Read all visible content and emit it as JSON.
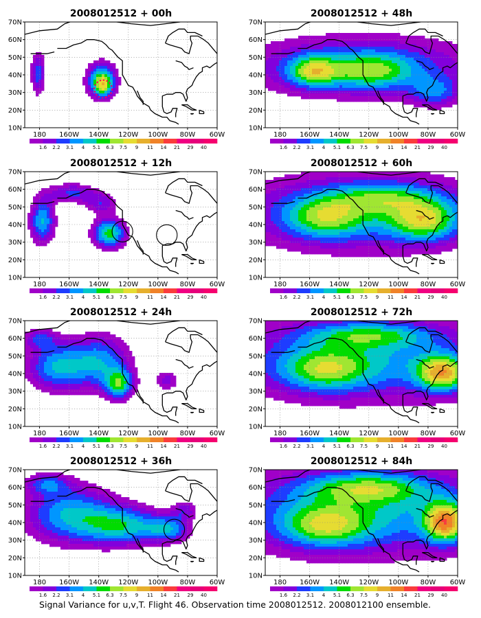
{
  "caption": "Signal Variance for u,v,T. Flight 46. Observation time 2008012512. 2008012100 ensemble.",
  "lon_tick_labels": [
    "180",
    "160W",
    "140W",
    "120W",
    "100W",
    "80W",
    "60W"
  ],
  "lat_tick_labels": [
    "10N",
    "20N",
    "30N",
    "40N",
    "50N",
    "60N",
    "70N"
  ],
  "colorbar": {
    "levels": [
      "1.6",
      "2.2",
      "3.1",
      "4",
      "5.1",
      "6.3",
      "7.5",
      "9",
      "11",
      "14",
      "21",
      "29",
      "40"
    ],
    "colors": [
      "#a000c8",
      "#8200dc",
      "#1e3cff",
      "#0096ff",
      "#00c8c8",
      "#00dc00",
      "#a0e632",
      "#e6dc32",
      "#e6af2d",
      "#f08228",
      "#fa3c3c",
      "#f00082",
      "#e6007a",
      "#f5006e"
    ]
  },
  "chart_data": [
    {
      "type": "heatmap",
      "title": "2008012512 + 00h",
      "lead": "00h",
      "col": 0,
      "row": 0,
      "xlim": [
        -190,
        -60
      ],
      "ylim": [
        10,
        70
      ],
      "blobs": [
        {
          "lon": -181,
          "lat": 41,
          "slon": 3.5,
          "slat": 9,
          "amp": 2.6
        },
        {
          "lon": -138,
          "lat": 37,
          "slon": 7,
          "slat": 7,
          "amp": 4.6
        },
        {
          "lon": -137,
          "lat": 33,
          "slon": 4,
          "slat": 4,
          "amp": 2.0
        }
      ],
      "circles": [
        {
          "lon": -137,
          "lat": 32,
          "r": 6,
          "color": "#ff0050",
          "dashed": true
        }
      ]
    },
    {
      "type": "heatmap",
      "title": "2008012512 + 12h",
      "lead": "12h",
      "col": 0,
      "row": 1,
      "xlim": [
        -190,
        -60
      ],
      "ylim": [
        10,
        70
      ],
      "blobs": [
        {
          "lon": -178,
          "lat": 42,
          "slon": 6,
          "slat": 9,
          "amp": 3.6
        },
        {
          "lon": -158,
          "lat": 58,
          "slon": 12,
          "slat": 4,
          "amp": 2.4
        },
        {
          "lon": -133,
          "lat": 35,
          "slon": 8,
          "slat": 6,
          "amp": 4.4
        },
        {
          "lon": -138,
          "lat": 52,
          "slon": 8,
          "slat": 4,
          "amp": 2.0
        }
      ],
      "circles": [
        {
          "lon": -124,
          "lat": 36,
          "r": 7,
          "color": "#000000",
          "dashed": false
        },
        {
          "lon": -94,
          "lat": 34,
          "r": 7,
          "color": "#000000",
          "dashed": false
        }
      ]
    },
    {
      "type": "heatmap",
      "title": "2008012512 + 24h",
      "lead": "24h",
      "col": 0,
      "row": 2,
      "xlim": [
        -190,
        -60
      ],
      "ylim": [
        10,
        70
      ],
      "blobs": [
        {
          "lon": -168,
          "lat": 44,
          "slon": 15,
          "slat": 10,
          "amp": 3.4
        },
        {
          "lon": -138,
          "lat": 47,
          "slon": 14,
          "slat": 11,
          "amp": 3.0
        },
        {
          "lon": -126,
          "lat": 34,
          "slon": 7,
          "slat": 6,
          "amp": 3.8
        },
        {
          "lon": -94,
          "lat": 36,
          "slon": 6,
          "slat": 4,
          "amp": 1.9
        },
        {
          "lon": -180,
          "lat": 60,
          "slon": 8,
          "slat": 4,
          "amp": 2.0
        }
      ],
      "circles": []
    },
    {
      "type": "heatmap",
      "title": "2008012512 + 36h",
      "lead": "36h",
      "col": 0,
      "row": 3,
      "xlim": [
        -190,
        -60
      ],
      "ylim": [
        10,
        70
      ],
      "blobs": [
        {
          "lon": -160,
          "lat": 45,
          "slon": 22,
          "slat": 12,
          "amp": 3.4
        },
        {
          "lon": -122,
          "lat": 38,
          "slon": 20,
          "slat": 8,
          "amp": 3.5
        },
        {
          "lon": -92,
          "lat": 36,
          "slon": 10,
          "slat": 5,
          "amp": 2.6
        },
        {
          "lon": -175,
          "lat": 62,
          "slon": 10,
          "slat": 4,
          "amp": 2.2
        },
        {
          "lon": -82,
          "lat": 47,
          "slon": 6,
          "slat": 4,
          "amp": 1.8
        }
      ],
      "circles": [
        {
          "lon": -89,
          "lat": 36,
          "r": 7,
          "color": "#000000",
          "dashed": false
        }
      ]
    },
    {
      "type": "heatmap",
      "title": "2008012512 + 48h",
      "lead": "48h",
      "col": 1,
      "row": 0,
      "xlim": [
        -190,
        -60
      ],
      "ylim": [
        10,
        70
      ],
      "blobs": [
        {
          "lon": -125,
          "lat": 45,
          "slon": 60,
          "slat": 13,
          "amp": 2.8
        },
        {
          "lon": -158,
          "lat": 42,
          "slon": 12,
          "slat": 6,
          "amp": 3.4
        },
        {
          "lon": -118,
          "lat": 42,
          "slon": 20,
          "slat": 7,
          "amp": 2.6
        },
        {
          "lon": -75,
          "lat": 30,
          "slon": 12,
          "slat": 6,
          "amp": 2.2
        }
      ],
      "circles": []
    },
    {
      "type": "heatmap",
      "title": "2008012512 + 60h",
      "lead": "60h",
      "col": 1,
      "row": 1,
      "xlim": [
        -190,
        -60
      ],
      "ylim": [
        10,
        70
      ],
      "blobs": [
        {
          "lon": -125,
          "lat": 47,
          "slon": 62,
          "slat": 16,
          "amp": 3.2
        },
        {
          "lon": -82,
          "lat": 42,
          "slon": 16,
          "slat": 8,
          "amp": 3.4
        },
        {
          "lon": -150,
          "lat": 44,
          "slon": 18,
          "slat": 8,
          "amp": 2.6
        },
        {
          "lon": -110,
          "lat": 55,
          "slon": 25,
          "slat": 6,
          "amp": 2.2
        }
      ],
      "circles": []
    },
    {
      "type": "heatmap",
      "title": "2008012512 + 72h",
      "lead": "72h",
      "col": 1,
      "row": 2,
      "xlim": [
        -190,
        -60
      ],
      "ylim": [
        10,
        70
      ],
      "blobs": [
        {
          "lon": -125,
          "lat": 48,
          "slon": 65,
          "slat": 17,
          "amp": 3.4
        },
        {
          "lon": -70,
          "lat": 40,
          "slon": 12,
          "slat": 7,
          "amp": 4.6
        },
        {
          "lon": -120,
          "lat": 62,
          "slon": 30,
          "slat": 5,
          "amp": 2.4
        },
        {
          "lon": -150,
          "lat": 42,
          "slon": 20,
          "slat": 8,
          "amp": 2.6
        }
      ],
      "circles": []
    },
    {
      "type": "heatmap",
      "title": "2008012512 + 84h",
      "lead": "84h",
      "col": 1,
      "row": 3,
      "xlim": [
        -190,
        -60
      ],
      "ylim": [
        10,
        70
      ],
      "blobs": [
        {
          "lon": -125,
          "lat": 46,
          "slon": 65,
          "slat": 18,
          "amp": 3.6
        },
        {
          "lon": -68,
          "lat": 40,
          "slon": 10,
          "slat": 8,
          "amp": 5.0
        },
        {
          "lon": -120,
          "lat": 60,
          "slon": 30,
          "slat": 6,
          "amp": 2.8
        },
        {
          "lon": -150,
          "lat": 38,
          "slon": 20,
          "slat": 8,
          "amp": 2.8
        }
      ],
      "circles": []
    }
  ]
}
